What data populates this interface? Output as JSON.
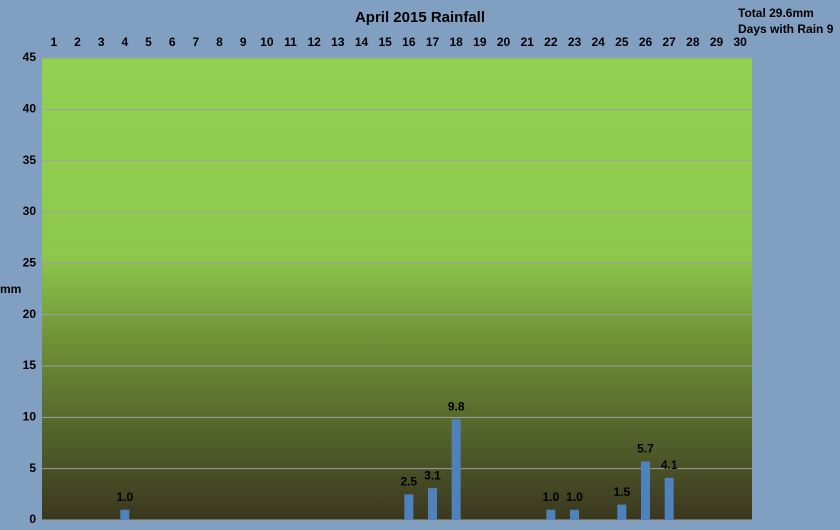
{
  "chart_data": {
    "type": "bar",
    "title": "April 2015  Rainfall",
    "annotations": [
      "Total 29.6mm",
      "Days with Rain 9"
    ],
    "y_label": "mm",
    "categories": [
      "1",
      "2",
      "3",
      "4",
      "5",
      "6",
      "7",
      "8",
      "9",
      "10",
      "11",
      "12",
      "13",
      "14",
      "15",
      "16",
      "17",
      "18",
      "19",
      "20",
      "21",
      "22",
      "23",
      "24",
      "25",
      "26",
      "27",
      "28",
      "29",
      "30"
    ],
    "values": [
      0,
      0,
      0,
      1.0,
      0,
      0,
      0,
      0,
      0,
      0,
      0,
      0,
      0,
      0,
      0,
      2.5,
      3.1,
      9.8,
      0,
      0,
      0,
      1.0,
      1.0,
      0,
      1.5,
      5.7,
      4.1,
      0,
      0,
      0
    ],
    "value_labels": [
      null,
      null,
      null,
      "1.0",
      null,
      null,
      null,
      null,
      null,
      null,
      null,
      null,
      null,
      null,
      null,
      "2.5",
      "3.1",
      "9.8",
      null,
      null,
      null,
      "1.0",
      "1.0",
      null,
      "1.5",
      "5.7",
      "4.1",
      null,
      null,
      null
    ],
    "color": "#4f81bd",
    "ylim": [
      0,
      45
    ],
    "yticks": [
      0,
      5,
      10,
      15,
      20,
      25,
      30,
      35,
      40,
      45
    ],
    "grid": true
  }
}
